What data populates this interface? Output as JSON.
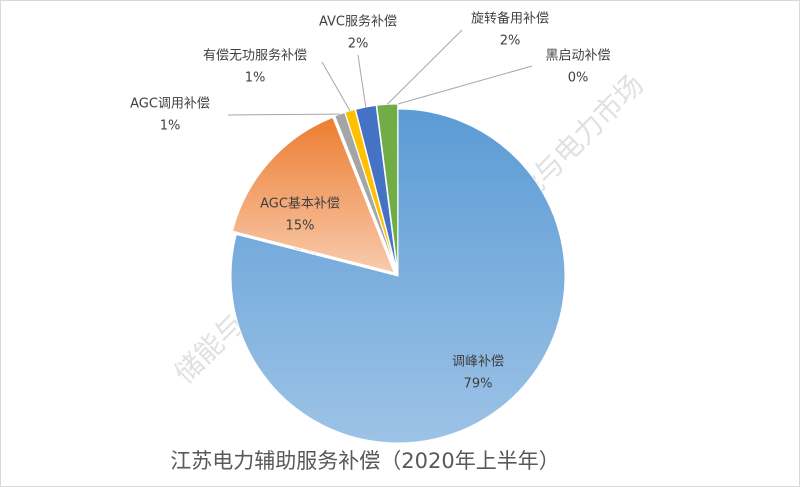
{
  "chart_data": {
    "type": "pie",
    "title": "江苏电力辅助服务补偿（2020年上半年）",
    "categories": [
      "调峰补偿",
      "AGC基本补偿",
      "AGC调用补偿",
      "有偿无功服务补偿",
      "AVC服务补偿",
      "旋转备用补偿",
      "黑启动补偿"
    ],
    "values": [
      79,
      15,
      1,
      1,
      2,
      2,
      0
    ],
    "value_labels": [
      "79%",
      "15%",
      "1%",
      "1%",
      "2%",
      "2%",
      "0%"
    ],
    "colors": [
      "#6fa6dc",
      "#f08a4b",
      "#a5a5a5",
      "#ffc000",
      "#4472c4",
      "#70ad47",
      "#255e91"
    ],
    "watermark": "储能与电力市场"
  }
}
